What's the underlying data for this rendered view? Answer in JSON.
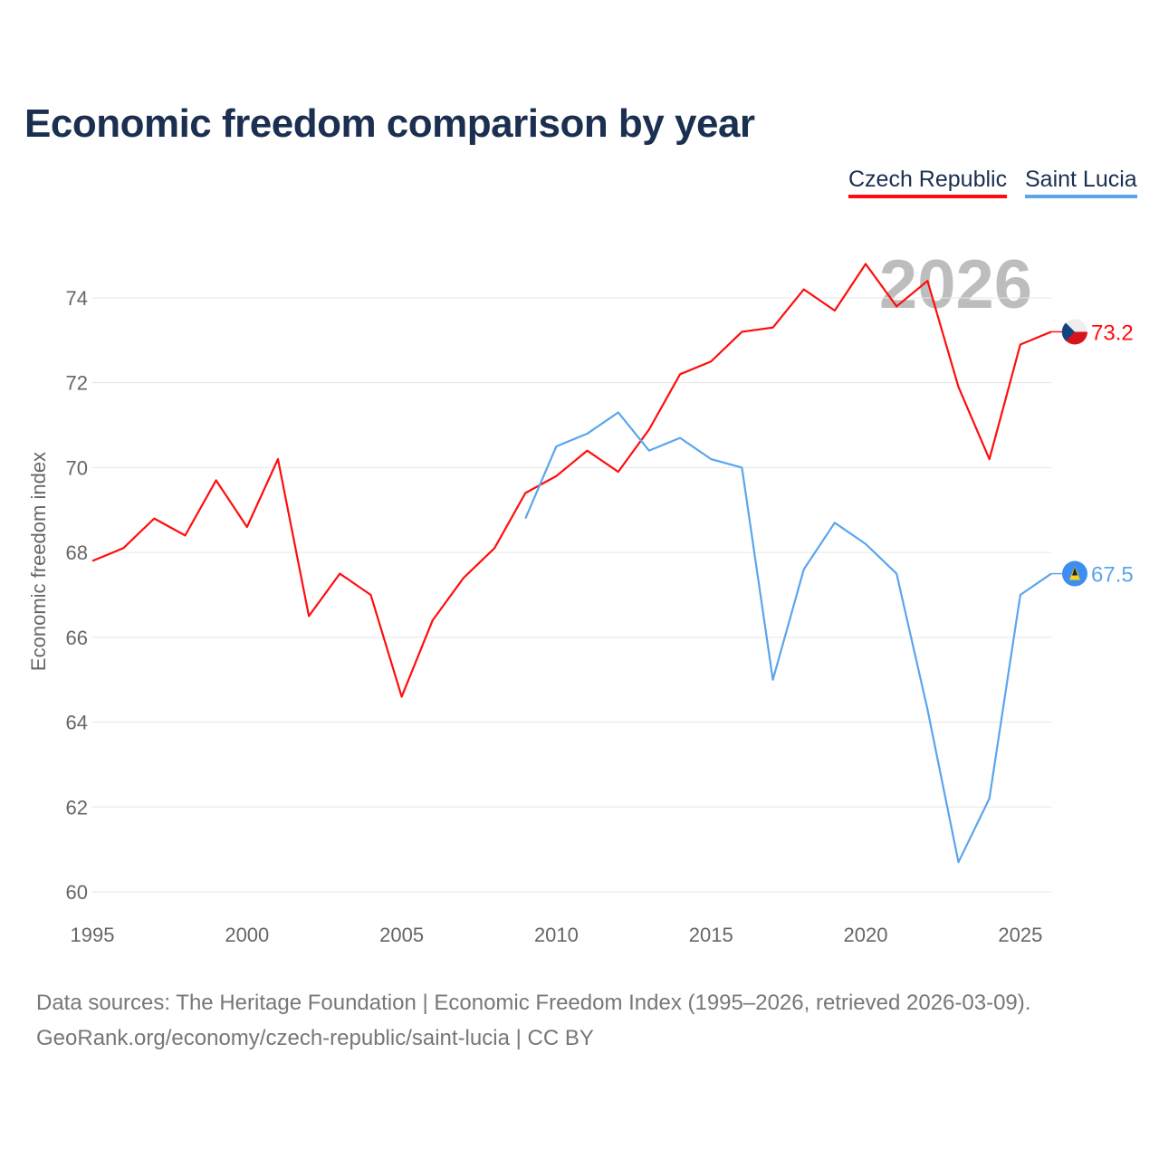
{
  "title": "Economic freedom comparison by year",
  "year_watermark": "2026",
  "footer": {
    "line1": "Data sources: The Heritage Foundation | Economic Freedom Index (1995–2026, retrieved 2026-03-09).",
    "line2": "GeoRank.org/economy/czech-republic/saint-lucia | CC BY"
  },
  "chart_data": {
    "type": "line",
    "title": "Economic freedom comparison by year",
    "xlabel": "",
    "ylabel": "Economic freedom index",
    "xlim": [
      1995,
      2026
    ],
    "ylim": [
      60,
      75
    ],
    "xticks": [
      "1995",
      "2000",
      "2005",
      "2010",
      "2015",
      "2020",
      "2025"
    ],
    "yticks": [
      "60",
      "62",
      "64",
      "66",
      "68",
      "70",
      "72",
      "74"
    ],
    "grid": true,
    "legend": "top-right",
    "series": [
      {
        "name": "Czech Republic",
        "color": "#ff0d0d",
        "end_label": "73.2",
        "flag": "czech-flag",
        "x": [
          1995,
          1996,
          1997,
          1998,
          1999,
          2000,
          2001,
          2002,
          2003,
          2004,
          2005,
          2006,
          2007,
          2008,
          2009,
          2010,
          2011,
          2012,
          2013,
          2014,
          2015,
          2016,
          2017,
          2018,
          2019,
          2020,
          2021,
          2022,
          2023,
          2024,
          2025,
          2026
        ],
        "values": [
          67.8,
          68.1,
          68.8,
          68.4,
          69.7,
          68.6,
          70.2,
          66.5,
          67.5,
          67.0,
          64.6,
          66.4,
          67.4,
          68.1,
          69.4,
          69.8,
          70.4,
          69.9,
          70.9,
          72.2,
          72.5,
          73.2,
          73.3,
          74.2,
          73.7,
          74.8,
          73.8,
          74.4,
          71.9,
          70.2,
          72.9,
          73.2
        ]
      },
      {
        "name": "Saint Lucia",
        "color": "#5aa5ee",
        "end_label": "67.5",
        "flag": "saint-lucia-flag",
        "x": [
          2009,
          2010,
          2011,
          2012,
          2013,
          2014,
          2015,
          2016,
          2017,
          2018,
          2019,
          2020,
          2021,
          2022,
          2023,
          2024,
          2025,
          2026
        ],
        "values": [
          68.8,
          70.5,
          70.8,
          71.3,
          70.4,
          70.7,
          70.2,
          70.0,
          65.0,
          67.6,
          68.7,
          68.2,
          67.5,
          64.3,
          60.7,
          62.2,
          67.0,
          67.5
        ]
      }
    ]
  }
}
